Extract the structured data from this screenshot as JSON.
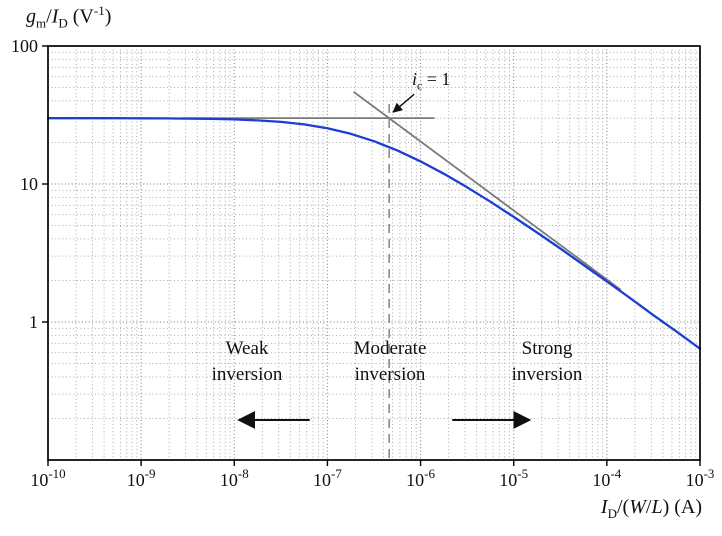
{
  "labels": {
    "y_title": {
      "g": "g",
      "g_sub": "m",
      "slash": "/",
      "I": "I",
      "I_sub": "D",
      "unit": " (V",
      "exp": "-1",
      "close": ")"
    },
    "x_title": {
      "I": "I",
      "I_sub": "D",
      "open": "/(",
      "W": "W",
      "slash": "/",
      "L": "L",
      "close": ")",
      "unit": " (A)"
    },
    "ic": {
      "i": "i",
      "sub": "c",
      "rest": " = 1"
    }
  },
  "chart_data": {
    "type": "line",
    "title": "",
    "x_axis": {
      "label": "ID/(W/L) (A)",
      "scale": "log",
      "log10_range": [
        -10,
        -3
      ],
      "tick_exponents": [
        -10,
        -9,
        -8,
        -7,
        -6,
        -5,
        -4,
        -3
      ]
    },
    "y_axis": {
      "label": "gm/ID (V^-1)",
      "scale": "log",
      "log10_range": [
        -1,
        2
      ],
      "ticks": [
        {
          "value": 100,
          "label": "100"
        },
        {
          "value": 10,
          "label": "10"
        },
        {
          "value": 1,
          "label": "1"
        }
      ]
    },
    "grid": {
      "style": "dotted",
      "minor": true,
      "major_color": "#8f8f8f",
      "minor_color": "#aaaaaa"
    },
    "series": [
      {
        "name": "gm/ID vs ID/(W/L)",
        "color": "#1c3ed2",
        "x_log10": [
          -10,
          -9.75,
          -9.5,
          -9.25,
          -9,
          -8.75,
          -8.5,
          -8.25,
          -8,
          -7.75,
          -7.5,
          -7.25,
          -7,
          -6.75,
          -6.5,
          -6.25,
          -6,
          -5.75,
          -5.5,
          -5.25,
          -5,
          -4.75,
          -4.5,
          -4.25,
          -4,
          -3.75,
          -3.5,
          -3.25,
          -3
        ],
        "y": [
          29.99,
          29.99,
          29.98,
          29.96,
          29.94,
          29.89,
          29.8,
          29.64,
          29.38,
          28.92,
          28.18,
          27.02,
          25.35,
          23.12,
          20.43,
          17.51,
          14.59,
          11.86,
          9.47,
          7.44,
          5.78,
          4.45,
          3.41,
          2.59,
          1.97,
          1.49,
          1.12,
          0.85,
          0.64
        ]
      }
    ],
    "asymptotes": {
      "weak_inversion_level": 30,
      "weak_line": {
        "y": 30,
        "x_log10_from": -8.55,
        "x_log10_to": -5.85,
        "color": "#7a7a7a"
      },
      "strong_line": {
        "points": [
          [
            -6.72,
            46.6
          ],
          [
            -3.85,
            1.71
          ]
        ],
        "color": "#7a7a7a"
      }
    },
    "markers": {
      "ic_equals_1": {
        "x_A": 4.6e-07,
        "x_log10": -6.337,
        "y": 30
      },
      "dashed_vertical": {
        "x_log10": -6.337,
        "y_from": 38,
        "y_to": 0.1,
        "color": "#8a8a8a"
      }
    },
    "regions": [
      {
        "line1": "Weak",
        "line2": "inversion"
      },
      {
        "line1": "Moderate",
        "line2": "inversion"
      },
      {
        "line1": "Strong",
        "line2": "inversion"
      }
    ],
    "region_arrows": [
      {
        "direction": "left",
        "y": 0.195,
        "x_log10_from": -7.19,
        "x_log10_to": -7.95
      },
      {
        "direction": "right",
        "y": 0.195,
        "x_log10_from": -5.66,
        "x_log10_to": -4.83
      }
    ]
  }
}
